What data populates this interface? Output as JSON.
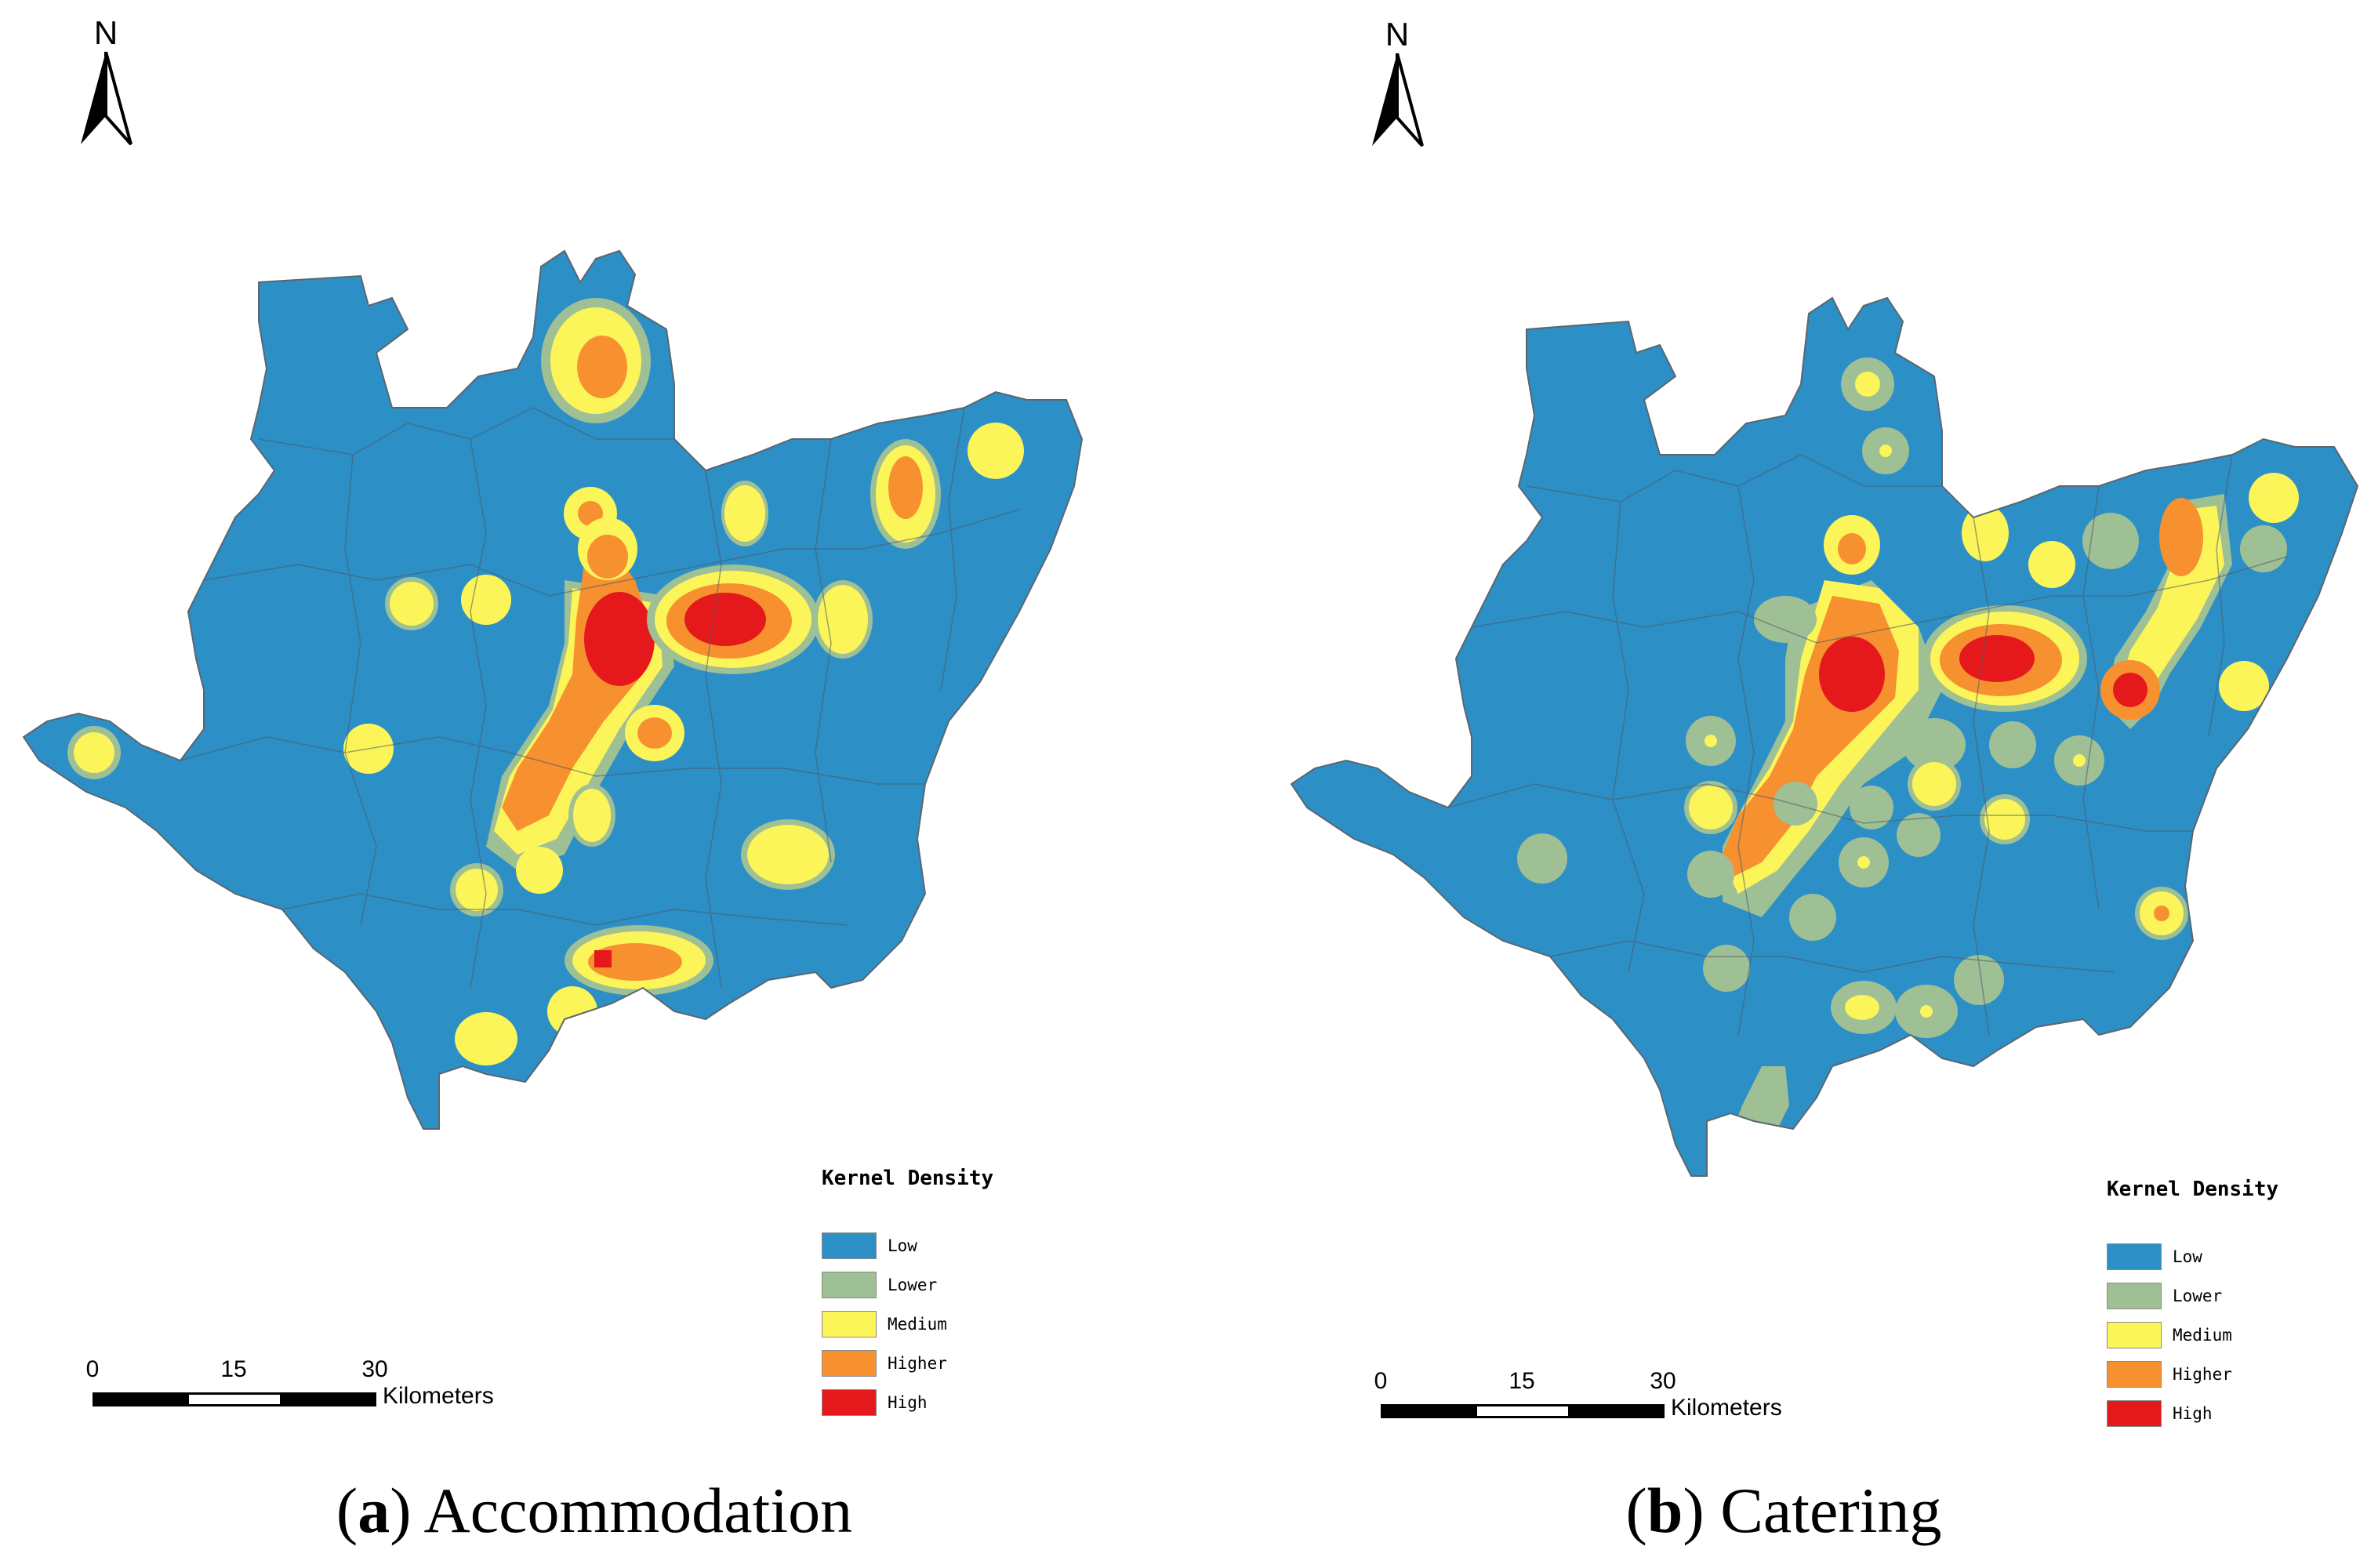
{
  "panels": [
    {
      "id": "a",
      "caption_letter": "a",
      "caption_title": "Accommodation",
      "north_label": "N",
      "legend_title": "Kernel Density",
      "legend": [
        {
          "label": "Low",
          "color": "#2c8fc6"
        },
        {
          "label": "Lower",
          "color": "#9fbf95"
        },
        {
          "label": "Medium",
          "color": "#fbf55a"
        },
        {
          "label": "Higher",
          "color": "#f7902f"
        },
        {
          "label": "High",
          "color": "#e5191b"
        }
      ],
      "scale_ticks": [
        "0",
        "15",
        "30"
      ],
      "scale_unit": "Kilometers"
    },
    {
      "id": "b",
      "caption_letter": "b",
      "caption_title": "Catering",
      "north_label": "N",
      "legend_title": "Kernel Density",
      "legend": [
        {
          "label": "Low",
          "color": "#2c8fc6"
        },
        {
          "label": "Lower",
          "color": "#9fbf95"
        },
        {
          "label": "Medium",
          "color": "#fbf55a"
        },
        {
          "label": "Higher",
          "color": "#f7902f"
        },
        {
          "label": "High",
          "color": "#e5191b"
        }
      ],
      "scale_ticks": [
        "0",
        "15",
        "30"
      ],
      "scale_unit": "Kilometers"
    }
  ]
}
